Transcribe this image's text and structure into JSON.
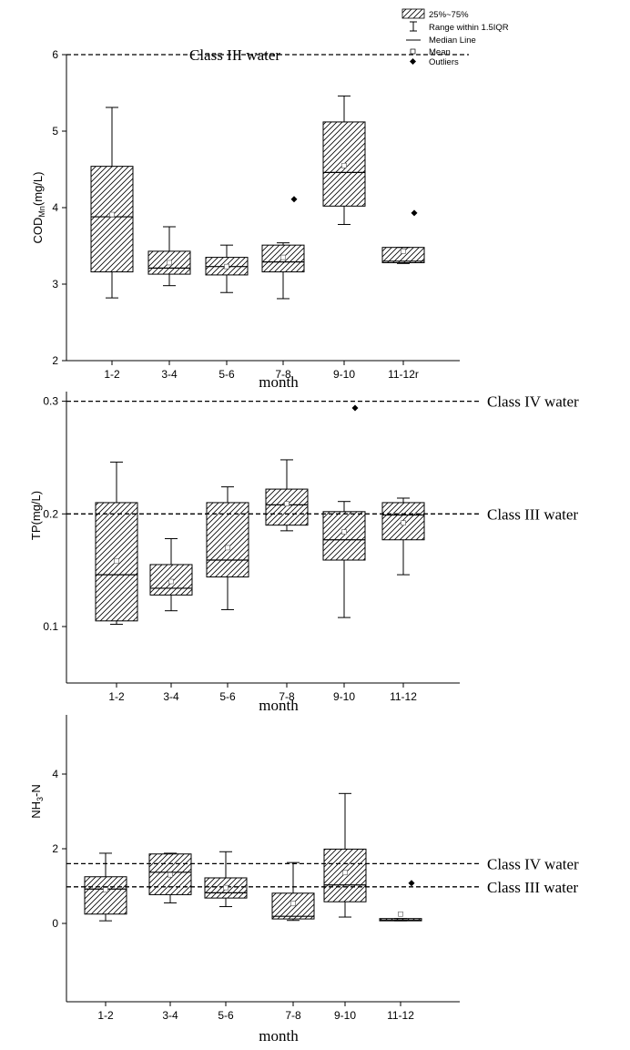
{
  "legend": {
    "box_label": "25%~75%",
    "range_label": "Range within 1.5IQR",
    "median_label": "Median Line",
    "mean_label": "Mean",
    "outlier_label": "Outliers"
  },
  "chart_data": [
    {
      "type": "boxplot",
      "ylabel_main": "COD",
      "ylabel_sub": "Mn",
      "ylabel_suffix": "(mg/L)",
      "xlabel": "month",
      "ylim": [
        2,
        6
      ],
      "yticks": [
        "2",
        "3",
        "4",
        "5",
        "6"
      ],
      "categories": [
        "1-2",
        "3-4",
        "5-6",
        "7-8",
        "9-10",
        "11-12r"
      ],
      "boxes": [
        {
          "whisker_low": 2.82,
          "q1": 3.16,
          "median": 3.88,
          "q3": 4.54,
          "whisker_high": 5.31,
          "mean": 3.91,
          "outliers": []
        },
        {
          "whisker_low": 2.98,
          "q1": 3.13,
          "median": 3.21,
          "q3": 3.43,
          "whisker_high": 3.75,
          "mean": 3.28,
          "outliers": []
        },
        {
          "whisker_low": 2.89,
          "q1": 3.12,
          "median": 3.23,
          "q3": 3.35,
          "whisker_high": 3.51,
          "mean": 3.23,
          "outliers": []
        },
        {
          "whisker_low": 2.81,
          "q1": 3.16,
          "median": 3.29,
          "q3": 3.51,
          "whisker_high": 3.54,
          "mean": 3.35,
          "outliers": [
            4.11
          ]
        },
        {
          "whisker_low": 3.78,
          "q1": 4.02,
          "median": 4.46,
          "q3": 5.12,
          "whisker_high": 5.46,
          "mean": 4.55,
          "outliers": []
        },
        {
          "whisker_low": 3.27,
          "q1": 3.28,
          "median": 3.3,
          "q3": 3.48,
          "whisker_high": 3.48,
          "mean": 3.43,
          "outliers": [
            3.93
          ]
        }
      ],
      "reference_lines": [
        {
          "label": "Class III water",
          "value": 6.0,
          "label_position": "inside-top"
        }
      ]
    },
    {
      "type": "boxplot",
      "ylabel_main": "TP(mg/L)",
      "ylabel_sub": "",
      "ylabel_suffix": "",
      "xlabel": "month",
      "ylim": [
        0.05,
        0.31
      ],
      "yticks": [
        "0.1",
        "0.2",
        "0.3"
      ],
      "ytick_values": [
        0.1,
        0.2,
        0.3
      ],
      "categories": [
        "1-2",
        "3-4",
        "5-6",
        "7-8",
        "9-10",
        "11-12"
      ],
      "boxes": [
        {
          "whisker_low": 0.102,
          "q1": 0.105,
          "median": 0.146,
          "q3": 0.21,
          "whisker_high": 0.246,
          "mean": 0.158,
          "outliers": []
        },
        {
          "whisker_low": 0.114,
          "q1": 0.128,
          "median": 0.134,
          "q3": 0.155,
          "whisker_high": 0.178,
          "mean": 0.14,
          "outliers": []
        },
        {
          "whisker_low": 0.115,
          "q1": 0.144,
          "median": 0.159,
          "q3": 0.21,
          "whisker_high": 0.224,
          "mean": 0.17,
          "outliers": []
        },
        {
          "whisker_low": 0.185,
          "q1": 0.19,
          "median": 0.208,
          "q3": 0.222,
          "whisker_high": 0.248,
          "mean": 0.209,
          "outliers": []
        },
        {
          "whisker_low": 0.108,
          "q1": 0.159,
          "median": 0.177,
          "q3": 0.202,
          "whisker_high": 0.211,
          "mean": 0.184,
          "outliers": [
            0.294
          ]
        },
        {
          "whisker_low": 0.146,
          "q1": 0.177,
          "median": 0.199,
          "q3": 0.21,
          "whisker_high": 0.214,
          "mean": 0.192,
          "outliers": []
        }
      ],
      "reference_lines": [
        {
          "label": "Class IV water",
          "value": 0.3,
          "label_position": "right"
        },
        {
          "label": "Class III water",
          "value": 0.2,
          "label_position": "right"
        }
      ]
    },
    {
      "type": "boxplot",
      "ylabel_main": "NH",
      "ylabel_sub": "3",
      "ylabel_suffix": "-N",
      "xlabel": "month",
      "ylim": [
        -1,
        4.5
      ],
      "yticks": [
        "0",
        "2",
        "4"
      ],
      "ytick_values": [
        0,
        2,
        4
      ],
      "categories": [
        "1-2",
        "3-4",
        "5-6",
        "7-8",
        "9-10",
        "11-12"
      ],
      "boxes": [
        {
          "whisker_low": 0.07,
          "q1": 0.25,
          "median": 0.92,
          "q3": 1.25,
          "whisker_high": 1.88,
          "mean": 0.9,
          "outliers": []
        },
        {
          "whisker_low": 0.55,
          "q1": 0.77,
          "median": 1.37,
          "q3": 1.86,
          "whisker_high": 1.88,
          "mean": 1.3,
          "outliers": []
        },
        {
          "whisker_low": 0.45,
          "q1": 0.68,
          "median": 0.82,
          "q3": 1.22,
          "whisker_high": 1.92,
          "mean": 0.96,
          "outliers": []
        },
        {
          "whisker_low": 0.08,
          "q1": 0.12,
          "median": 0.19,
          "q3": 0.81,
          "whisker_high": 1.63,
          "mean": 0.53,
          "outliers": []
        },
        {
          "whisker_low": 0.17,
          "q1": 0.58,
          "median": 1.03,
          "q3": 1.99,
          "whisker_high": 3.48,
          "mean": 1.36,
          "outliers": []
        },
        {
          "whisker_low": 0.07,
          "q1": 0.07,
          "median": 0.09,
          "q3": 0.13,
          "whisker_high": 0.13,
          "mean": 0.25,
          "outliers": [
            1.08
          ]
        }
      ],
      "reference_lines": [
        {
          "label": "Class IV water",
          "value": 1.6,
          "label_position": "right"
        },
        {
          "label": "Class III water",
          "value": 0.98,
          "label_position": "right"
        }
      ]
    }
  ]
}
